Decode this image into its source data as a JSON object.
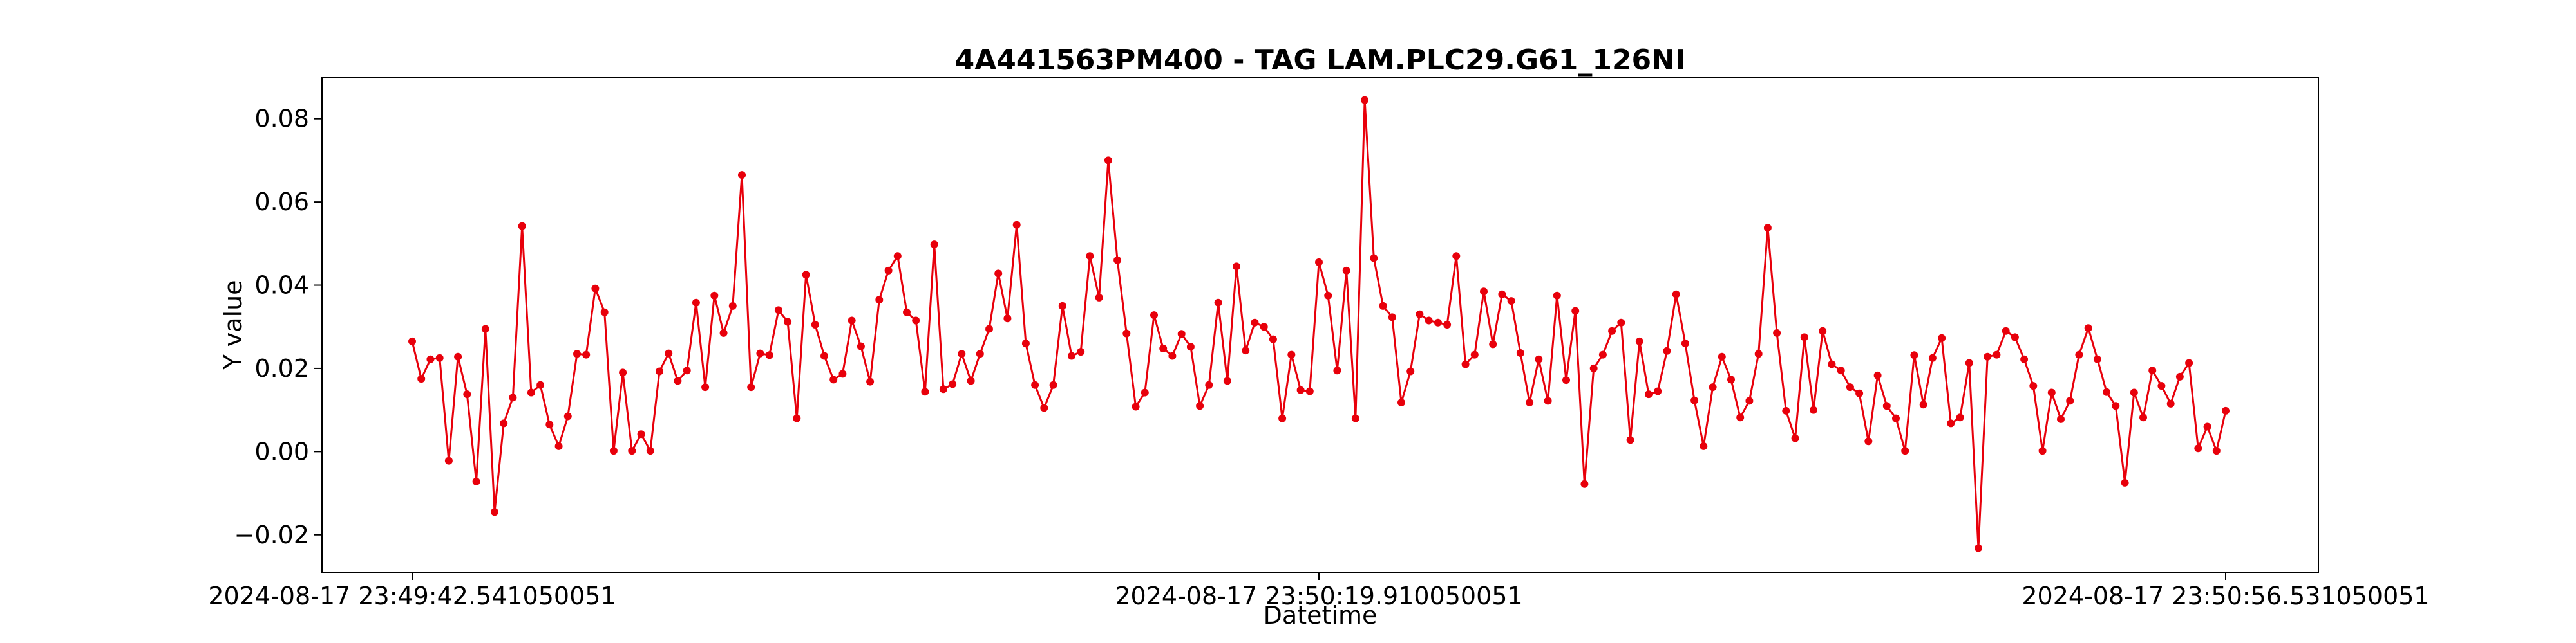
{
  "chart_data": {
    "type": "line",
    "title": "4A441563PM400 - TAG LAM.PLC29.G61_126NI",
    "xlabel": "Datetime",
    "ylabel": "Y value",
    "x_ticks": [
      "2024-08-17 23:49:42.541050051",
      "2024-08-17 23:50:19.910050051",
      "2024-08-17 23:50:56.531050051"
    ],
    "y_ticks": [
      "−0.02",
      "0.00",
      "0.02",
      "0.04",
      "0.06",
      "0.08"
    ],
    "ylim": [
      -0.029,
      0.09
    ],
    "grid": false,
    "line_color": "#e8000b",
    "marker": "circle",
    "series": [
      {
        "values": [
          0.0265,
          0.0175,
          0.0222,
          0.0225,
          -0.0022,
          0.0228,
          0.0138,
          -0.0072,
          0.0295,
          -0.0145,
          0.0068,
          0.013,
          0.0542,
          0.0142,
          0.016,
          0.0065,
          0.0013,
          0.0085,
          0.0235,
          0.0233,
          0.0392,
          0.0335,
          0.0002,
          0.019,
          0.0002,
          0.0042,
          0.0002,
          0.0193,
          0.0236,
          0.017,
          0.0195,
          0.0358,
          0.0155,
          0.0375,
          0.0285,
          0.035,
          0.0665,
          0.0155,
          0.0236,
          0.0232,
          0.034,
          0.0312,
          0.008,
          0.0425,
          0.0305,
          0.023,
          0.0173,
          0.0187,
          0.0315,
          0.0253,
          0.0168,
          0.0365,
          0.0435,
          0.047,
          0.0335,
          0.0315,
          0.0144,
          0.0498,
          0.015,
          0.0162,
          0.0235,
          0.017,
          0.0235,
          0.0295,
          0.0428,
          0.032,
          0.0545,
          0.026,
          0.016,
          0.0105,
          0.016,
          0.035,
          0.023,
          0.024,
          0.047,
          0.037,
          0.07,
          0.046,
          0.0284,
          0.0108,
          0.0142,
          0.0328,
          0.0248,
          0.023,
          0.0283,
          0.0252,
          0.011,
          0.016,
          0.0358,
          0.017,
          0.0445,
          0.0243,
          0.031,
          0.03,
          0.027,
          0.008,
          0.0233,
          0.0148,
          0.0145,
          0.0455,
          0.0375,
          0.0195,
          0.0435,
          0.008,
          0.0845,
          0.0465,
          0.035,
          0.0323,
          0.0118,
          0.0193,
          0.033,
          0.0315,
          0.031,
          0.0305,
          0.047,
          0.021,
          0.0233,
          0.0385,
          0.0258,
          0.0378,
          0.0362,
          0.0237,
          0.0118,
          0.0222,
          0.0122,
          0.0375,
          0.0172,
          0.0338,
          -0.0078,
          0.02,
          0.0233,
          0.029,
          0.031,
          0.0028,
          0.0265,
          0.0138,
          0.0145,
          0.0242,
          0.0378,
          0.026,
          0.0123,
          0.0013,
          0.0155,
          0.0228,
          0.0173,
          0.0082,
          0.0122,
          0.0235,
          0.0538,
          0.0285,
          0.0098,
          0.0032,
          0.0275,
          0.01,
          0.029,
          0.021,
          0.0195,
          0.0155,
          0.014,
          0.0025,
          0.0183,
          0.011,
          0.008,
          0.0002,
          0.0232,
          0.0113,
          0.0225,
          0.0273,
          0.0068,
          0.0082,
          0.0213,
          -0.0232,
          0.0228,
          0.0233,
          0.029,
          0.0275,
          0.0222,
          0.0158,
          0.0002,
          0.0142,
          0.0078,
          0.0122,
          0.0233,
          0.0297,
          0.0222,
          0.0143,
          0.011,
          -0.0075,
          0.0142,
          0.0082,
          0.0195,
          0.0158,
          0.0115,
          0.018,
          0.0213,
          0.0008,
          0.006,
          0.0002,
          0.0098
        ]
      }
    ]
  }
}
